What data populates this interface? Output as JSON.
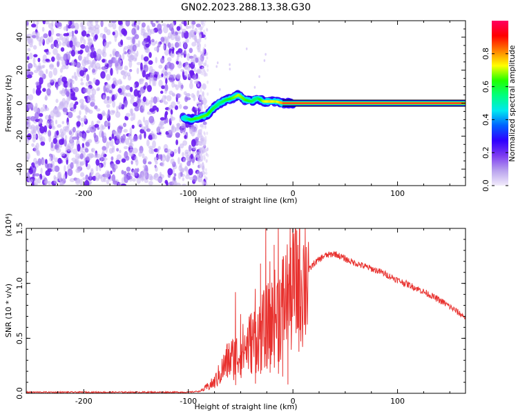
{
  "title": "GN02.2023.288.13.38.G30",
  "chart_data": [
    {
      "type": "heatmap",
      "xlabel": "Height of straight line (km)",
      "ylabel": "Frequency (Hz)",
      "xlim": [
        -255,
        165
      ],
      "ylim": [
        -50,
        50
      ],
      "xticks": [
        -200,
        -100,
        0,
        100
      ],
      "yticks": [
        -40,
        -20,
        0,
        20,
        40
      ],
      "xtick_labels": [
        "-200",
        "-100",
        "0",
        "100"
      ],
      "ytick_labels": [
        "-40",
        "-20",
        "0",
        "20",
        "40"
      ],
      "colorbar": {
        "label": "Normalized spectral amplitude",
        "range": [
          0,
          1
        ],
        "ticks": [
          0.0,
          0.2,
          0.4,
          0.6,
          0.8
        ],
        "tick_labels": [
          "0.0",
          "0.2",
          "0.4",
          "0.6",
          "0.8"
        ],
        "colormap": [
          "#f2ecfb",
          "#b9a2ee",
          "#7d3cf0",
          "#3000ff",
          "#0060ff",
          "#00e8f0",
          "#00ff80",
          "#20ff00",
          "#ffff00",
          "#ff8000",
          "#ff0000",
          "#ff0060"
        ]
      },
      "noise_region_x": [
        -255,
        -88
      ],
      "signal_track": [
        {
          "x": -105,
          "f": -9,
          "a": 0.45
        },
        {
          "x": -98,
          "f": -10,
          "a": 0.6
        },
        {
          "x": -90,
          "f": -9,
          "a": 0.65
        },
        {
          "x": -82,
          "f": -7,
          "a": 0.65
        },
        {
          "x": -76,
          "f": -3,
          "a": 0.6
        },
        {
          "x": -70,
          "f": 0,
          "a": 0.55
        },
        {
          "x": -64,
          "f": 2,
          "a": 0.6
        },
        {
          "x": -58,
          "f": 3,
          "a": 0.65
        },
        {
          "x": -52,
          "f": 5,
          "a": 0.7
        },
        {
          "x": -46,
          "f": 2,
          "a": 0.65
        },
        {
          "x": -40,
          "f": 1,
          "a": 0.6
        },
        {
          "x": -34,
          "f": 3,
          "a": 0.55
        },
        {
          "x": -28,
          "f": 1,
          "a": 0.7
        },
        {
          "x": -22,
          "f": 1,
          "a": 0.75
        },
        {
          "x": -16,
          "f": 1,
          "a": 0.7
        },
        {
          "x": -10,
          "f": 0,
          "a": 0.8
        },
        {
          "x": -4,
          "f": 0,
          "a": 0.85
        },
        {
          "x": 0,
          "f": 0,
          "a": 0.95
        }
      ],
      "carrier_line": {
        "f": 0,
        "x_start": -10,
        "x_end": 165
      }
    },
    {
      "type": "line",
      "xlabel": "Height of straight line (km)",
      "ylabel": "SNR (10 * v/v)",
      "exponent_label": "(x10⁴)",
      "xlim": [
        -255,
        165
      ],
      "ylim": [
        0,
        1.5
      ],
      "xticks": [
        -200,
        -100,
        0,
        100
      ],
      "yticks": [
        0.0,
        0.5,
        1.0,
        1.5
      ],
      "xtick_labels": [
        "-200",
        "-100",
        "0",
        "100"
      ],
      "ytick_labels": [
        "0.0",
        "0.5",
        "1.0",
        "1.5"
      ],
      "color": "#e8312e",
      "envelope_x": [
        -255,
        -150,
        -100,
        -88,
        -75,
        -62,
        -52,
        -42,
        -30,
        -20,
        -10,
        0,
        10,
        20,
        30,
        40,
        55,
        70,
        85,
        100,
        115,
        130,
        145,
        165
      ],
      "envelope_y": [
        0.01,
        0.01,
        0.01,
        0.02,
        0.1,
        0.3,
        0.35,
        0.45,
        0.55,
        0.65,
        0.8,
        0.95,
        1.05,
        1.18,
        1.25,
        1.27,
        1.2,
        1.15,
        1.1,
        1.03,
        0.97,
        0.9,
        0.82,
        0.69
      ],
      "spikes": [
        {
          "x": -55,
          "y": 0.92
        },
        {
          "x": -50,
          "y": 0.72
        },
        {
          "x": -36,
          "y": 0.95
        },
        {
          "x": -31,
          "y": 1.18
        },
        {
          "x": -26,
          "y": 1.52
        },
        {
          "x": -22,
          "y": 1.2
        },
        {
          "x": -18,
          "y": 1.35
        },
        {
          "x": -14,
          "y": 1.52
        },
        {
          "x": -10,
          "y": 1.1
        },
        {
          "x": -5,
          "y": 1.08
        }
      ]
    }
  ]
}
